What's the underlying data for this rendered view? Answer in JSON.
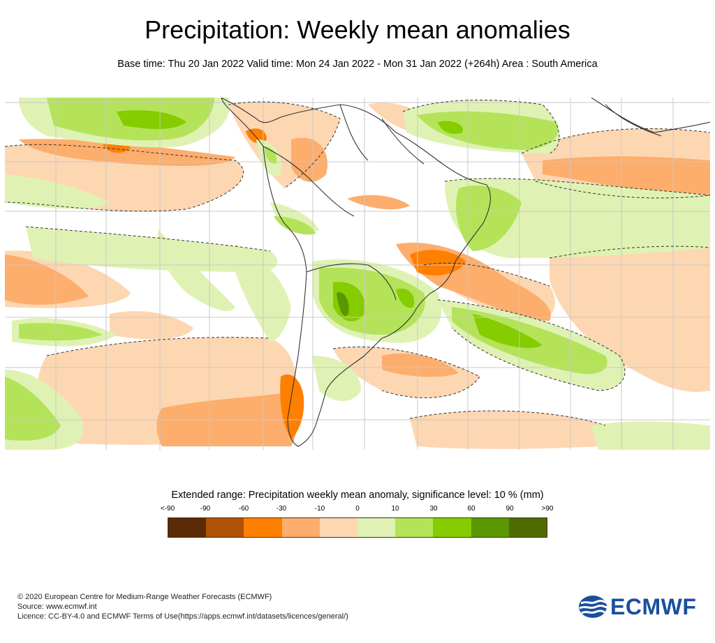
{
  "header": {
    "title": "Precipitation: Weekly mean anomalies",
    "subtitle": "Base time: Thu 20 Jan 2022 Valid time: Mon 24 Jan 2022 - Mon 31 Jan 2022 (+264h) Area : South America"
  },
  "map": {
    "region": "South America",
    "colors": {
      "ocean_background": "#ffffff",
      "graticule": "#c8c8c8",
      "coastline": "#333333"
    }
  },
  "legend": {
    "title": "Extended range: Precipitation weekly mean anomaly, significance level: 10 % (mm)",
    "ticks": [
      "<-90",
      "-90",
      "-60",
      "-30",
      "-10",
      "0",
      "10",
      "30",
      "60",
      "90",
      ">90"
    ],
    "colors": [
      "#5c2a06",
      "#b05205",
      "#ff7f00",
      "#fdad6c",
      "#fdd7b2",
      "#dff2b3",
      "#b4e35a",
      "#85cc00",
      "#5a9700",
      "#4f6b00"
    ]
  },
  "footer": {
    "line1": "© 2020 European Centre for Medium-Range Weather Forecasts (ECMWF)",
    "line2": "Source: www.ecmwf.int",
    "line3": "Licence: CC-BY-4.0 and ECMWF Terms of Use(https://apps.ecmwf.int/datasets/licences/general/)"
  },
  "logo": {
    "text": "ECMWF",
    "color": "#1a4f9c"
  }
}
